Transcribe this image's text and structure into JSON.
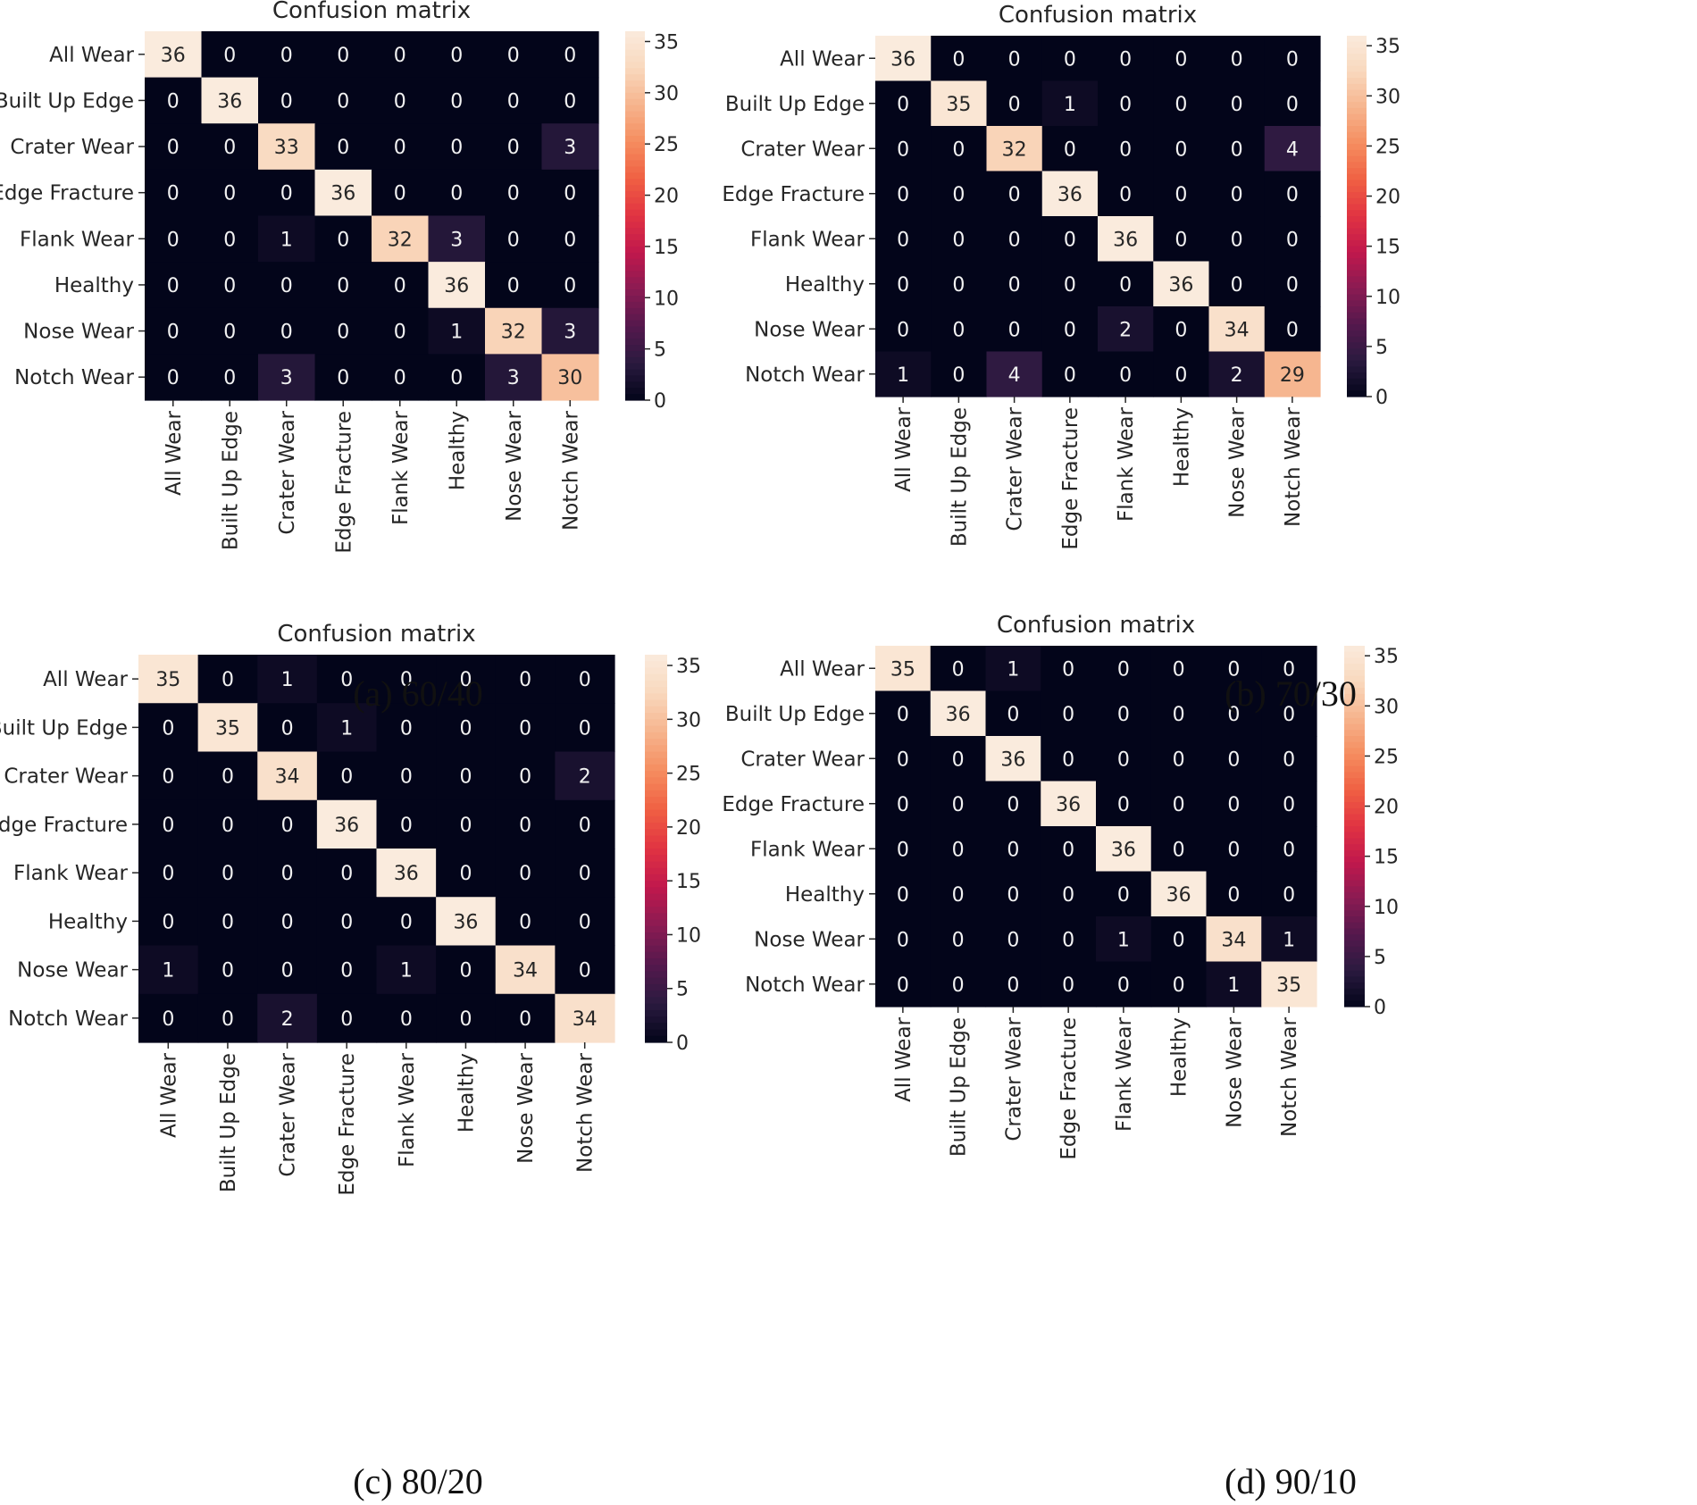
{
  "figure": {
    "captions": [
      "(a) 60/40",
      "(b) 70/30",
      "(c) 80/20",
      "(d) 90/10"
    ]
  },
  "colors": {
    "colormap": [
      "#03051a",
      "#2a1a3f",
      "#55184d",
      "#8a1b52",
      "#c0184d",
      "#e13342",
      "#f06043",
      "#f58d5f",
      "#f6b48d",
      "#f9d8bd",
      "#faebdd"
    ],
    "text_on_dark": "#f2f2f2",
    "text_on_light": "#262626",
    "axis_text": "#262626"
  },
  "chart_data": [
    {
      "type": "heatmap",
      "title": "Confusion matrix",
      "caption": "(a) 60/40",
      "row_labels": [
        "All Wear",
        "Built Up Edge",
        "Crater Wear",
        "Edge Fracture",
        "Flank Wear",
        "Healthy",
        "Nose Wear",
        "Notch Wear"
      ],
      "col_labels": [
        "All Wear",
        "Built Up Edge",
        "Crater Wear",
        "Edge Fracture",
        "Flank Wear",
        "Healthy",
        "Nose Wear",
        "Notch Wear"
      ],
      "values": [
        [
          36,
          0,
          0,
          0,
          0,
          0,
          0,
          0
        ],
        [
          0,
          36,
          0,
          0,
          0,
          0,
          0,
          0
        ],
        [
          0,
          0,
          33,
          0,
          0,
          0,
          0,
          3
        ],
        [
          0,
          0,
          0,
          36,
          0,
          0,
          0,
          0
        ],
        [
          0,
          0,
          1,
          0,
          32,
          3,
          0,
          0
        ],
        [
          0,
          0,
          0,
          0,
          0,
          36,
          0,
          0
        ],
        [
          0,
          0,
          0,
          0,
          0,
          1,
          32,
          3
        ],
        [
          0,
          0,
          3,
          0,
          0,
          0,
          3,
          30
        ]
      ],
      "vmin": 0,
      "vmax": 36,
      "colorbar_ticks": [
        0,
        5,
        10,
        15,
        20,
        25,
        30,
        35
      ]
    },
    {
      "type": "heatmap",
      "title": "Confusion matrix",
      "caption": "(b) 70/30",
      "row_labels": [
        "All Wear",
        "Built Up Edge",
        "Crater Wear",
        "Edge Fracture",
        "Flank Wear",
        "Healthy",
        "Nose Wear",
        "Notch Wear"
      ],
      "col_labels": [
        "All Wear",
        "Built Up Edge",
        "Crater Wear",
        "Edge Fracture",
        "Flank Wear",
        "Healthy",
        "Nose Wear",
        "Notch Wear"
      ],
      "values": [
        [
          36,
          0,
          0,
          0,
          0,
          0,
          0,
          0
        ],
        [
          0,
          35,
          0,
          1,
          0,
          0,
          0,
          0
        ],
        [
          0,
          0,
          32,
          0,
          0,
          0,
          0,
          4
        ],
        [
          0,
          0,
          0,
          36,
          0,
          0,
          0,
          0
        ],
        [
          0,
          0,
          0,
          0,
          36,
          0,
          0,
          0
        ],
        [
          0,
          0,
          0,
          0,
          0,
          36,
          0,
          0
        ],
        [
          0,
          0,
          0,
          0,
          2,
          0,
          34,
          0
        ],
        [
          1,
          0,
          4,
          0,
          0,
          0,
          2,
          29
        ]
      ],
      "vmin": 0,
      "vmax": 36,
      "colorbar_ticks": [
        0,
        5,
        10,
        15,
        20,
        25,
        30,
        35
      ]
    },
    {
      "type": "heatmap",
      "title": "Confusion matrix",
      "caption": "(c) 80/20",
      "row_labels": [
        "All Wear",
        "Built Up Edge",
        "Crater Wear",
        "Edge Fracture",
        "Flank Wear",
        "Healthy",
        "Nose Wear",
        "Notch Wear"
      ],
      "col_labels": [
        "All Wear",
        "Built Up Edge",
        "Crater Wear",
        "Edge Fracture",
        "Flank Wear",
        "Healthy",
        "Nose Wear",
        "Notch Wear"
      ],
      "values": [
        [
          35,
          0,
          1,
          0,
          0,
          0,
          0,
          0
        ],
        [
          0,
          35,
          0,
          1,
          0,
          0,
          0,
          0
        ],
        [
          0,
          0,
          34,
          0,
          0,
          0,
          0,
          2
        ],
        [
          0,
          0,
          0,
          36,
          0,
          0,
          0,
          0
        ],
        [
          0,
          0,
          0,
          0,
          36,
          0,
          0,
          0
        ],
        [
          0,
          0,
          0,
          0,
          0,
          36,
          0,
          0
        ],
        [
          1,
          0,
          0,
          0,
          1,
          0,
          34,
          0
        ],
        [
          0,
          0,
          2,
          0,
          0,
          0,
          0,
          34
        ]
      ],
      "vmin": 0,
      "vmax": 36,
      "colorbar_ticks": [
        0,
        5,
        10,
        15,
        20,
        25,
        30,
        35
      ]
    },
    {
      "type": "heatmap",
      "title": "Confusion matrix",
      "caption": "(d) 90/10",
      "row_labels": [
        "All Wear",
        "Built Up Edge",
        "Crater Wear",
        "Edge Fracture",
        "Flank Wear",
        "Healthy",
        "Nose Wear",
        "Notch Wear"
      ],
      "col_labels": [
        "All Wear",
        "Built Up Edge",
        "Crater Wear",
        "Edge Fracture",
        "Flank Wear",
        "Healthy",
        "Nose Wear",
        "Notch Wear"
      ],
      "values": [
        [
          35,
          0,
          1,
          0,
          0,
          0,
          0,
          0
        ],
        [
          0,
          36,
          0,
          0,
          0,
          0,
          0,
          0
        ],
        [
          0,
          0,
          36,
          0,
          0,
          0,
          0,
          0
        ],
        [
          0,
          0,
          0,
          36,
          0,
          0,
          0,
          0
        ],
        [
          0,
          0,
          0,
          0,
          36,
          0,
          0,
          0
        ],
        [
          0,
          0,
          0,
          0,
          0,
          36,
          0,
          0
        ],
        [
          0,
          0,
          0,
          0,
          1,
          0,
          34,
          1
        ],
        [
          0,
          0,
          0,
          0,
          0,
          0,
          1,
          35
        ]
      ],
      "vmin": 0,
      "vmax": 36,
      "colorbar_ticks": [
        0,
        5,
        10,
        15,
        20,
        25,
        30,
        35
      ]
    }
  ]
}
